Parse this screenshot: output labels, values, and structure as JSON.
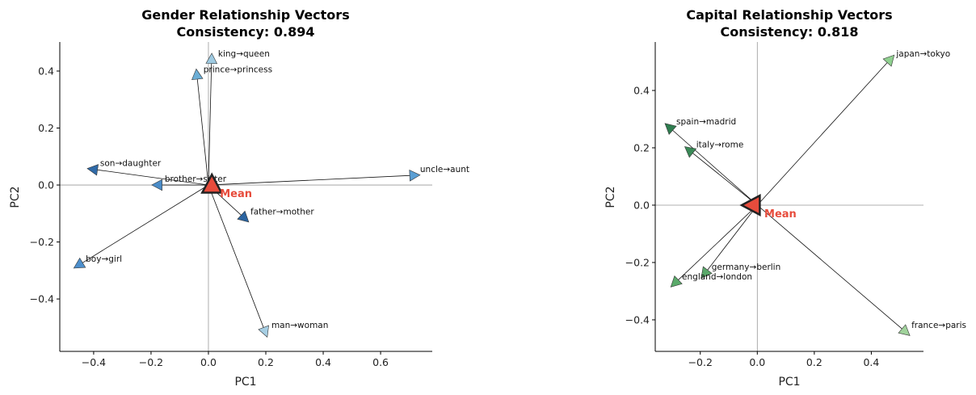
{
  "chart_data": [
    {
      "type": "scatter",
      "title": "Gender Relationship Vectors",
      "subtitle": "Consistency: 0.894",
      "xlabel": "PC1",
      "ylabel": "PC2",
      "xlim": [
        -0.518,
        0.78
      ],
      "ylim": [
        -0.584,
        0.502
      ],
      "xticks": [
        -0.4,
        -0.2,
        0.0,
        0.2,
        0.4,
        0.6
      ],
      "yticks": [
        -0.4,
        -0.2,
        0.0,
        0.2,
        0.4
      ],
      "grid": "zero-lines only",
      "vectors": [
        {
          "label": "king→queen",
          "x": 0.011,
          "y": 0.44,
          "color": "#9ecae1"
        },
        {
          "label": "prince→princess",
          "x": -0.04,
          "y": 0.385,
          "color": "#6baed6"
        },
        {
          "label": "son→daughter",
          "x": -0.4,
          "y": 0.055,
          "color": "#2f6aa8"
        },
        {
          "label": "brother→sister",
          "x": -0.175,
          "y": 0.0,
          "color": "#4a8cc8"
        },
        {
          "label": "uncle→aunt",
          "x": 0.715,
          "y": 0.034,
          "color": "#5b9fd4"
        },
        {
          "label": "father→mother",
          "x": 0.124,
          "y": -0.115,
          "color": "#2b64a0"
        },
        {
          "label": "boy→girl",
          "x": -0.45,
          "y": -0.28,
          "color": "#4d8fcc"
        },
        {
          "label": "man→woman",
          "x": 0.197,
          "y": -0.513,
          "color": "#a6cee3"
        }
      ],
      "mean": {
        "label": "Mean",
        "x": 0.012,
        "y": -0.003,
        "color": "#e74c3c",
        "orientation": "up"
      }
    },
    {
      "type": "scatter",
      "title": "Capital Relationship Vectors",
      "subtitle": "Consistency: 0.818",
      "xlabel": "PC1",
      "ylabel": "PC2",
      "xlim": [
        -0.358,
        0.583
      ],
      "ylim": [
        -0.51,
        0.569
      ],
      "xticks": [
        -0.2,
        0.0,
        0.2,
        0.4
      ],
      "yticks": [
        -0.4,
        -0.2,
        0.0,
        0.2,
        0.4
      ],
      "grid": "zero-lines only",
      "vectors": [
        {
          "label": "japan→tokyo",
          "x": 0.465,
          "y": 0.507,
          "color": "#8fd08f"
        },
        {
          "label": "spain→madrid",
          "x": -0.307,
          "y": 0.27,
          "color": "#2e7d4f"
        },
        {
          "label": "italy→rome",
          "x": -0.237,
          "y": 0.19,
          "color": "#3a8a57"
        },
        {
          "label": "germany→berlin",
          "x": -0.183,
          "y": -0.237,
          "color": "#5aa86a"
        },
        {
          "label": "england→london",
          "x": -0.287,
          "y": -0.27,
          "color": "#5aaa6a"
        },
        {
          "label": "france→paris",
          "x": 0.518,
          "y": -0.44,
          "color": "#a1d39c"
        }
      ],
      "mean": {
        "label": "Mean",
        "x": -0.015,
        "y": 0.0,
        "color": "#e74c3c",
        "orientation": "left"
      }
    }
  ]
}
